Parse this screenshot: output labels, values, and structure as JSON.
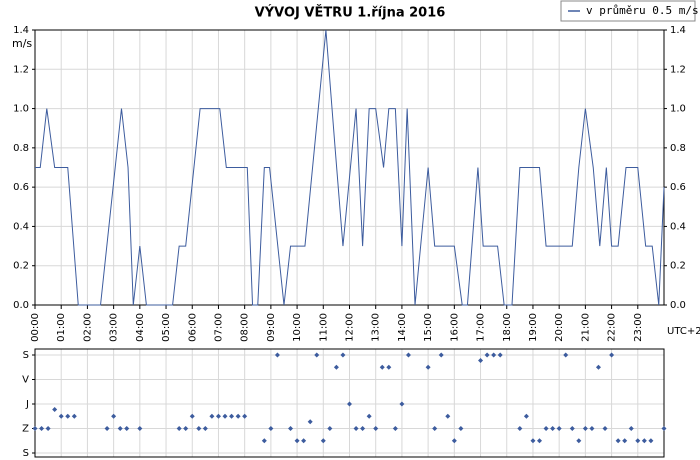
{
  "chart_data": [
    {
      "type": "line",
      "title": "VÝVOJ VĚTRU  1.října 2016",
      "ylabel": "m/s",
      "xlabel": "UTC+2",
      "legend": "top-right",
      "grid": true,
      "xlim": [
        0,
        24
      ],
      "xticks": [
        {
          "value": 0,
          "label": "00:00"
        },
        {
          "value": 1,
          "label": "01:00"
        },
        {
          "value": 2,
          "label": "02:00"
        },
        {
          "value": 3,
          "label": "03:00"
        },
        {
          "value": 4,
          "label": "04:00"
        },
        {
          "value": 5,
          "label": "05:00"
        },
        {
          "value": 6,
          "label": "06:00"
        },
        {
          "value": 7,
          "label": "07:00"
        },
        {
          "value": 8,
          "label": "08:00"
        },
        {
          "value": 9,
          "label": "09:00"
        },
        {
          "value": 10,
          "label": "10:00"
        },
        {
          "value": 11,
          "label": "11:00"
        },
        {
          "value": 12,
          "label": "12:00"
        },
        {
          "value": 13,
          "label": "13:00"
        },
        {
          "value": 14,
          "label": "14:00"
        },
        {
          "value": 15,
          "label": "15:00"
        },
        {
          "value": 16,
          "label": "16:00"
        },
        {
          "value": 17,
          "label": "17:00"
        },
        {
          "value": 18,
          "label": "18:00"
        },
        {
          "value": 19,
          "label": "19:00"
        },
        {
          "value": 20,
          "label": "20:00"
        },
        {
          "value": 21,
          "label": "21:00"
        },
        {
          "value": 22,
          "label": "22:00"
        },
        {
          "value": 23,
          "label": "23:00"
        }
      ],
      "ylim": [
        0,
        1.4
      ],
      "yticks": [
        {
          "value": 0,
          "label": "0.0"
        },
        0.2,
        0.4,
        0.6,
        0.8,
        {
          "value": 1,
          "label": "1.0"
        },
        1.2,
        1.4
      ],
      "x": [
        0,
        0.2,
        0.45,
        0.75,
        1.25,
        1.65,
        2.5,
        3.3,
        3.55,
        3.75,
        4.0,
        4.25,
        5.25,
        5.5,
        5.75,
        6.3,
        7.05,
        7.3,
        8.1,
        8.3,
        8.5,
        8.75,
        8.95,
        9.5,
        9.75,
        10.3,
        11.1,
        11.45,
        11.75,
        12.25,
        12.5,
        12.75,
        13.0,
        13.3,
        13.5,
        13.75,
        14.0,
        14.2,
        14.5,
        15.0,
        15.25,
        16.0,
        16.3,
        16.5,
        16.9,
        17.1,
        17.65,
        17.9,
        18.2,
        18.5,
        19.25,
        19.5,
        20.5,
        20.75,
        21.0,
        21.3,
        21.55,
        21.8,
        22.0,
        22.25,
        22.55,
        23.0,
        23.3,
        23.55,
        23.8,
        24.0
      ],
      "series": [
        {
          "name": "v průměru 0.5 m/s",
          "color": "#3d5c9e",
          "values": [
            0.7,
            0.7,
            1.0,
            0.7,
            0.7,
            0.0,
            0.0,
            1.0,
            0.7,
            0.0,
            0.3,
            0.0,
            0.0,
            0.3,
            0.3,
            1.0,
            1.0,
            0.7,
            0.7,
            0.0,
            0.0,
            0.7,
            0.7,
            0.0,
            0.3,
            0.3,
            1.4,
            0.8,
            0.3,
            1.0,
            0.3,
            1.0,
            1.0,
            0.7,
            1.0,
            1.0,
            0.3,
            1.0,
            0.0,
            0.7,
            0.3,
            0.3,
            0.0,
            0.0,
            0.7,
            0.3,
            0.3,
            0.0,
            0.0,
            0.7,
            0.7,
            0.3,
            0.3,
            0.7,
            1.0,
            0.7,
            0.3,
            0.7,
            0.3,
            0.3,
            0.7,
            0.7,
            0.3,
            0.3,
            0.0,
            0.6
          ]
        }
      ]
    },
    {
      "type": "scatter",
      "color": "#3d5c9e",
      "grid": true,
      "inverted": true,
      "xlim": [
        0,
        24
      ],
      "xticks": [
        0,
        1,
        2,
        3,
        4,
        5,
        6,
        7,
        8,
        9,
        10,
        11,
        12,
        13,
        14,
        15,
        16,
        17,
        18,
        19,
        20,
        21,
        22,
        23
      ],
      "ylim": [
        0,
        360
      ],
      "yticks": [
        {
          "value": 0,
          "label": "S"
        },
        {
          "value": 90,
          "label": "V"
        },
        {
          "value": 180,
          "label": "J"
        },
        {
          "value": 270,
          "label": "Z"
        },
        {
          "value": 360,
          "label": "S"
        }
      ],
      "x": [
        0,
        0.25,
        0.5,
        0.75,
        1.0,
        1.25,
        1.5,
        2.75,
        3.0,
        3.25,
        3.5,
        4.0,
        5.5,
        5.75,
        6.0,
        6.25,
        6.5,
        6.75,
        7.0,
        7.25,
        7.5,
        7.75,
        8.0,
        8.75,
        9.0,
        9.25,
        9.75,
        10.0,
        10.25,
        10.5,
        10.75,
        11.0,
        11.25,
        11.5,
        11.75,
        12.0,
        12.25,
        12.5,
        12.75,
        13.0,
        13.25,
        13.5,
        13.75,
        14.0,
        14.25,
        15.0,
        15.25,
        15.5,
        15.75,
        16.0,
        16.25,
        17.0,
        17.25,
        17.5,
        17.75,
        18.5,
        18.75,
        19.0,
        19.25,
        19.5,
        19.75,
        20.0,
        20.25,
        20.5,
        20.75,
        21.0,
        21.25,
        21.5,
        21.75,
        22.0,
        22.25,
        22.5,
        22.75,
        23.0,
        23.25,
        23.5,
        24.0
      ],
      "values": [
        270,
        270,
        270,
        200,
        225,
        225,
        225,
        270,
        225,
        270,
        270,
        270,
        270,
        270,
        225,
        270,
        270,
        225,
        225,
        225,
        225,
        225,
        225,
        315,
        270,
        0,
        270,
        315,
        315,
        245,
        0,
        315,
        270,
        45,
        0,
        180,
        270,
        270,
        225,
        270,
        45,
        45,
        270,
        180,
        0,
        45,
        270,
        0,
        225,
        315,
        270,
        20,
        0,
        0,
        0,
        270,
        225,
        315,
        315,
        270,
        270,
        270,
        0,
        270,
        315,
        270,
        270,
        45,
        270,
        0,
        315,
        315,
        270,
        315,
        315,
        315,
        270
      ]
    }
  ]
}
